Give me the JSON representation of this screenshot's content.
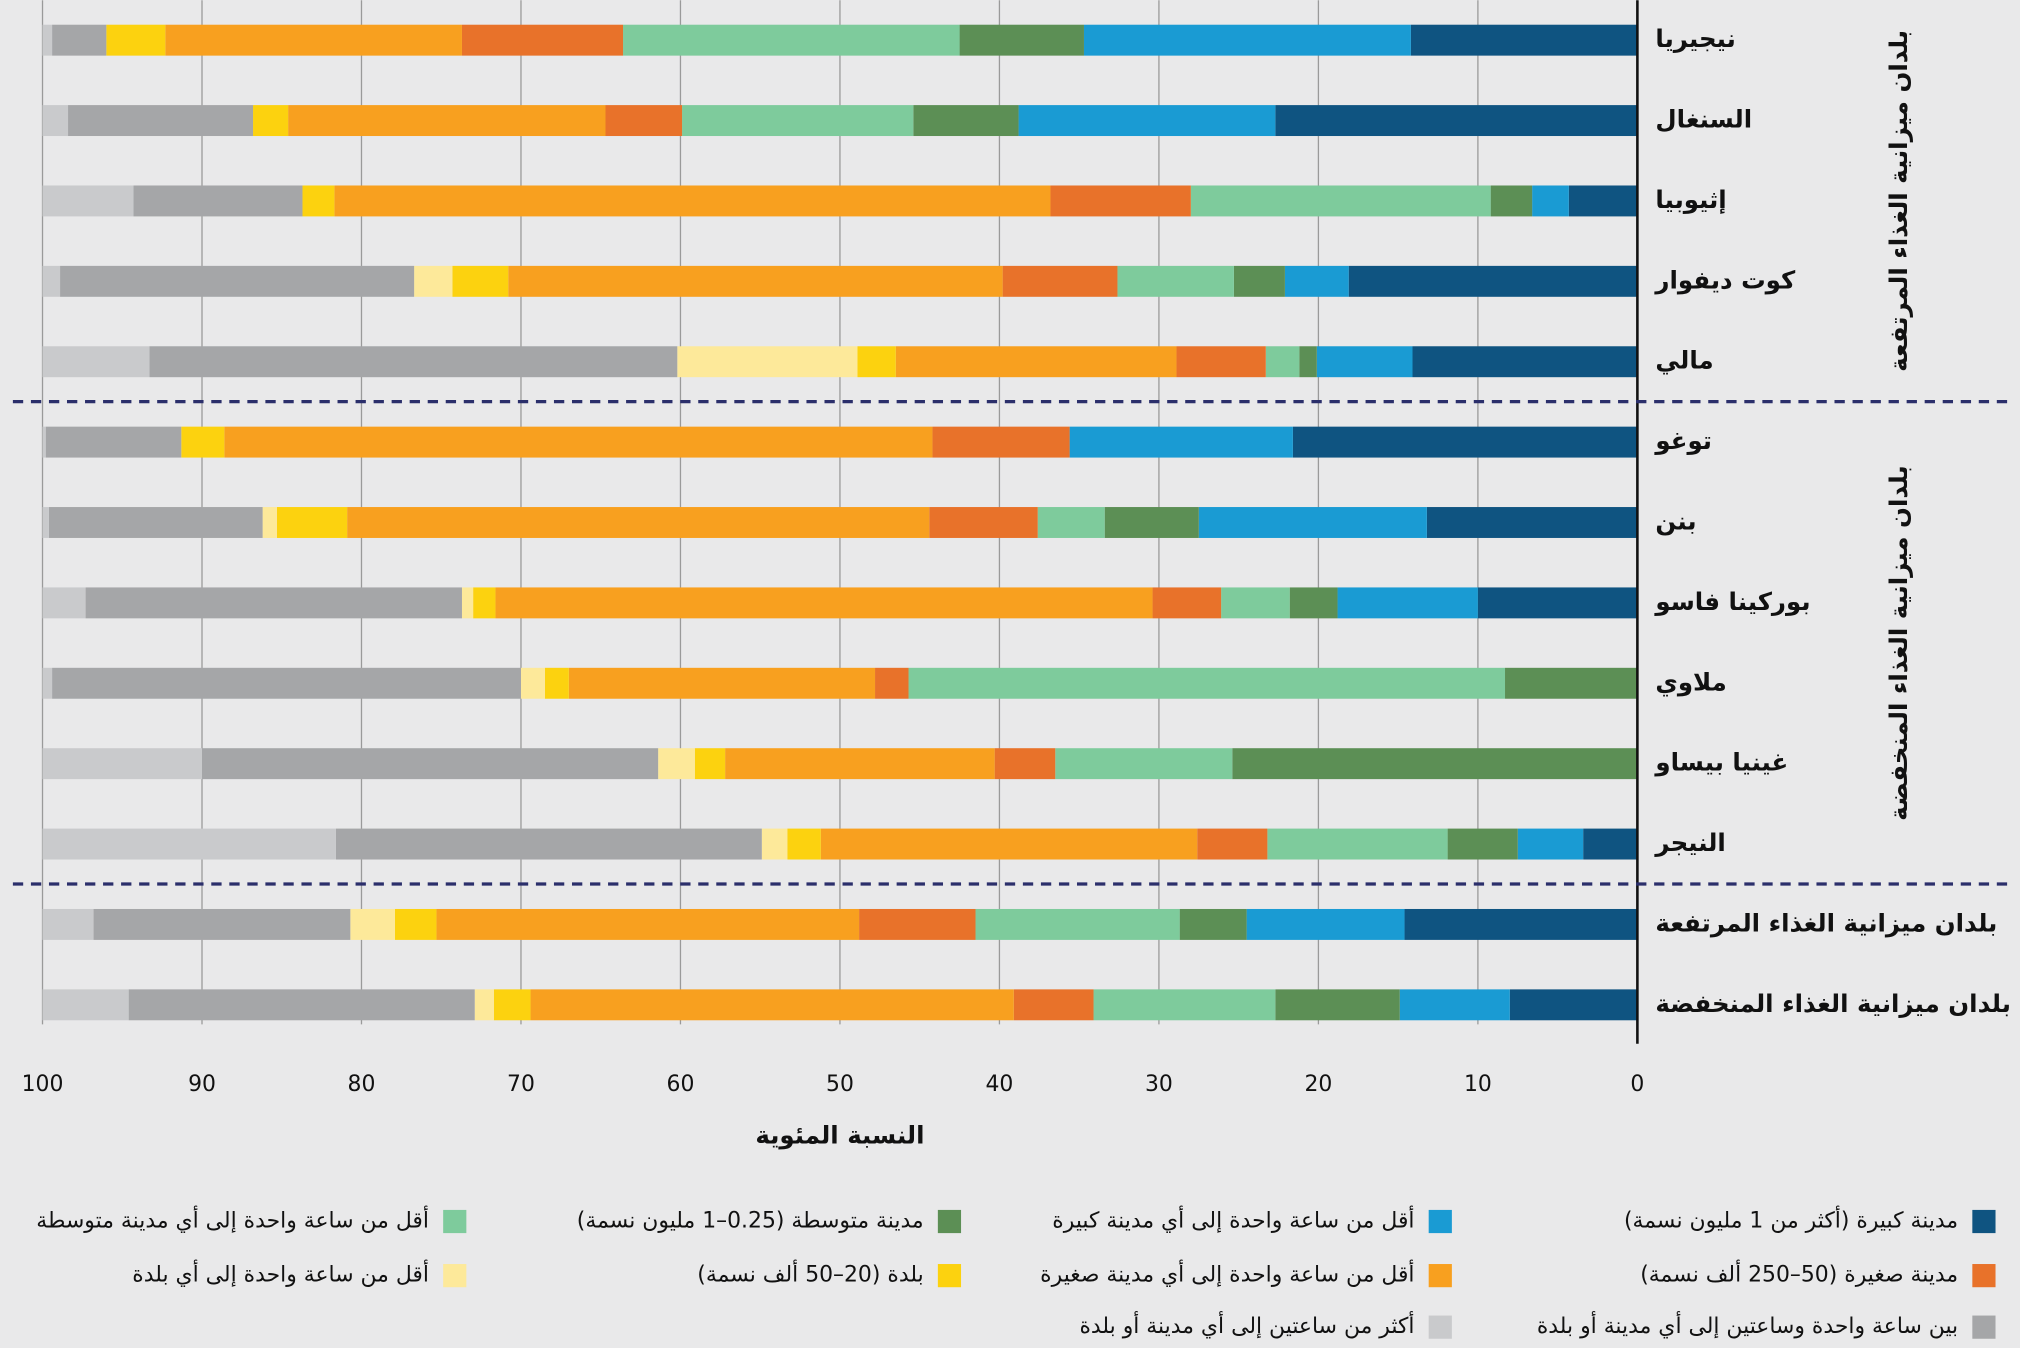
{
  "chart_data": {
    "type": "stacked-bar-horizontal",
    "x_label": "النسبة المئوية",
    "xlim": [
      0,
      100
    ],
    "x_reversed": true,
    "xticks": [
      0,
      10,
      20,
      30,
      40,
      50,
      60,
      70,
      80,
      90,
      100
    ],
    "grid": true,
    "categories": [
      "نيجيريا",
      "السنغال",
      "إثيوبيا",
      "كوت ديفوار",
      "مالي",
      "توغو",
      "بنن",
      "بوركينا فاسو",
      "ملاوي",
      "غينيا بيساو",
      "النيجر",
      "بلدان ميزانية الغذاء المرتفعة",
      "بلدان ميزانية الغذاء المنخفضة"
    ],
    "groups": [
      {
        "label": "بلدان ميزانية الغذاء المرتفعة",
        "first": 0,
        "last": 4
      },
      {
        "label": "بلدان ميزانية الغذاء المنخفضة",
        "first": 5,
        "last": 10
      }
    ],
    "series": [
      {
        "name": "مدينة كبيرة (أكثر من 1 مليون نسمة)",
        "color": "#0f5481",
        "values": [
          14.2,
          22.7,
          4.3,
          18.1,
          14.1,
          21.6,
          13.2,
          10.0,
          0,
          0,
          3.4,
          14.6,
          8.0
        ]
      },
      {
        "name": "أقل من ساعة واحدة إلى أي مدينة كبيرة",
        "color": "#1a9bd3",
        "values": [
          20.5,
          16.1,
          2.3,
          4.0,
          6.0,
          14.0,
          14.3,
          8.8,
          0,
          0,
          4.1,
          9.9,
          6.9
        ]
      },
      {
        "name": "مدينة متوسطة (0.25–1 مليون نسمة)",
        "color": "#5c8f55",
        "values": [
          7.8,
          6.6,
          2.6,
          3.2,
          1.1,
          0,
          5.9,
          3.0,
          8.3,
          25.4,
          4.4,
          4.2,
          7.8
        ]
      },
      {
        "name": "أقل من ساعة واحدة إلى أي مدينة متوسطة",
        "color": "#7ecb9c",
        "values": [
          21.1,
          14.5,
          18.8,
          7.3,
          2.1,
          0,
          4.2,
          4.3,
          37.4,
          11.1,
          11.3,
          12.8,
          11.4
        ]
      },
      {
        "name": "مدينة صغيرة (50–250 ألف نسمة)",
        "color": "#e8722a",
        "values": [
          10.1,
          4.8,
          8.8,
          7.2,
          5.6,
          8.6,
          6.8,
          4.3,
          2.1,
          3.8,
          4.4,
          7.3,
          5.0
        ]
      },
      {
        "name": "أقل من ساعة واحدة إلى أي مدينة صغيرة",
        "color": "#f8a01f",
        "values": [
          18.6,
          19.9,
          44.9,
          31.0,
          17.6,
          44.4,
          36.5,
          41.2,
          19.2,
          16.9,
          23.6,
          26.5,
          30.3
        ]
      },
      {
        "name": "بلدة (20–50 ألف نسمة)",
        "color": "#fcd20f",
        "values": [
          3.7,
          2.2,
          2.0,
          3.5,
          2.4,
          2.7,
          4.4,
          1.4,
          1.5,
          1.9,
          2.1,
          2.6,
          2.3
        ]
      },
      {
        "name": "أقل من ساعة واحدة إلى أي بلدة",
        "color": "#fde99a",
        "values": [
          0,
          0,
          0,
          2.4,
          11.3,
          0,
          0.9,
          0.7,
          1.5,
          2.3,
          1.6,
          2.8,
          1.2
        ]
      },
      {
        "name": "بين ساعة واحدة وساعتين إلى أي مدينة أو بلدة",
        "color": "#a5a6a8",
        "values": [
          3.4,
          11.6,
          10.6,
          22.2,
          33.1,
          8.5,
          13.4,
          23.6,
          29.4,
          28.6,
          26.7,
          16.1,
          21.7
        ]
      },
      {
        "name": "أكثر من ساعتين إلى أي مدينة أو بلدة",
        "color": "#c9cacc",
        "values": [
          0.6,
          1.6,
          5.7,
          1.1,
          6.7,
          0.2,
          0.4,
          2.7,
          0.6,
          10.0,
          18.4,
          3.2,
          5.4
        ]
      }
    ]
  }
}
